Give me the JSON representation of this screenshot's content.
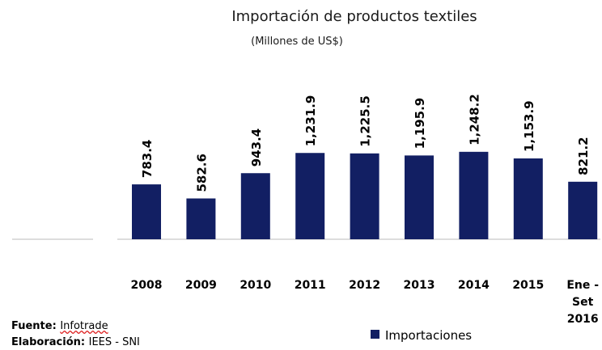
{
  "chart_data": {
    "type": "bar",
    "title": "Importación de productos textiles",
    "subtitle": "(Millones de US$)",
    "categories": [
      "2008",
      "2009",
      "2010",
      "2011",
      "2012",
      "2013",
      "2014",
      "2015",
      "Ene - Set 2016"
    ],
    "series": [
      {
        "name": "Importaciones",
        "color": "#121f63",
        "values": [
          783.4,
          582.6,
          943.4,
          1231.9,
          1225.5,
          1195.9,
          1248.2,
          1153.9,
          821.2
        ],
        "value_labels": [
          "783.4",
          "582.6",
          "943.4",
          "1,231.9",
          "1,225.5",
          "1,195.9",
          "1,248.2",
          "1,153.9",
          "821.2"
        ]
      }
    ],
    "ylim": [
      0,
      1500
    ],
    "legend": "bottom"
  },
  "footer": {
    "source_label": "Fuente:",
    "source": "Infotrade",
    "author_label": "Elaboración:",
    "author": "IEES - SNI"
  }
}
